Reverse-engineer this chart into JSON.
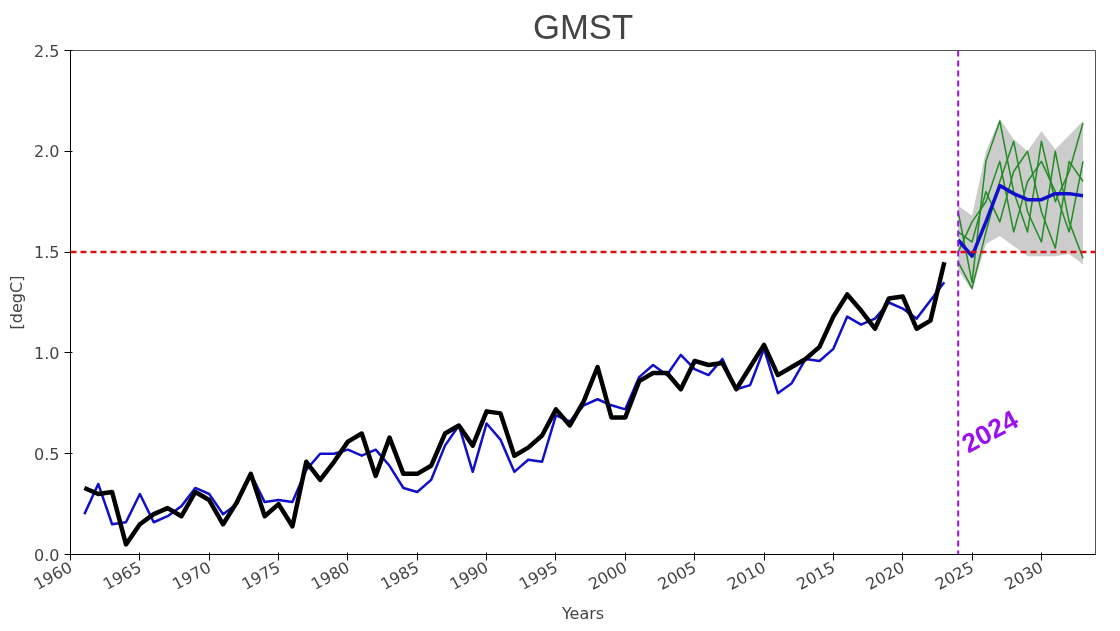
{
  "chart_data": {
    "type": "line",
    "title": "GMST",
    "xlabel": "Years",
    "ylabel": "[degC]",
    "xlim": [
      1960,
      2033.9
    ],
    "ylim": [
      0,
      2.5
    ],
    "xticks": [
      1960,
      1965,
      1970,
      1975,
      1980,
      1985,
      1990,
      1995,
      2000,
      2005,
      2010,
      2015,
      2020,
      2025,
      2030
    ],
    "yticks": [
      {
        "value": 0,
        "label": "0.0"
      },
      {
        "value": 0.5,
        "label": "0.5"
      },
      {
        "value": 1,
        "label": "1.0"
      },
      {
        "value": 1.5,
        "label": "1.5"
      },
      {
        "value": 2,
        "label": "2.0"
      },
      {
        "value": 2.5,
        "label": "2.5"
      }
    ],
    "grid": false,
    "line_style": "solid",
    "marker": "none",
    "series": [
      {
        "color": "#228b22",
        "x": [
          2024,
          2025,
          2026,
          2027,
          2028,
          2029,
          2030,
          2031,
          2032,
          2033
        ],
        "values": [
          1.7,
          1.35,
          1.95,
          2.15,
          1.8,
          1.6,
          2.05,
          1.75,
          1.9,
          2.14
        ]
      },
      {
        "color": "#228b22",
        "x": [
          2024,
          2025,
          2026,
          2027,
          2028,
          2029,
          2030,
          2031,
          2032,
          2033
        ],
        "values": [
          1.45,
          1.32,
          1.6,
          1.85,
          2.05,
          1.7,
          1.55,
          2.0,
          1.65,
          1.47
        ]
      },
      {
        "color": "#228b22",
        "x": [
          2024,
          2025,
          2026,
          2027,
          2028,
          2029,
          2030,
          2031,
          2032,
          2033
        ],
        "values": [
          1.6,
          1.55,
          1.8,
          1.65,
          1.9,
          2.0,
          1.7,
          1.52,
          1.95,
          1.85
        ]
      },
      {
        "color": "#228b22",
        "x": [
          2024,
          2025,
          2026,
          2027,
          2028,
          2029,
          2030,
          2031,
          2032,
          2033
        ],
        "values": [
          1.5,
          1.65,
          1.75,
          1.95,
          1.6,
          1.85,
          1.95,
          1.8,
          1.6,
          1.95
        ]
      },
      {
        "color": "#1010cc",
        "x": [
          2024,
          2025,
          2026,
          2027,
          2028,
          2029,
          2030,
          2031,
          2032,
          2033
        ],
        "values": [
          1.56,
          1.48,
          1.65,
          1.83,
          1.79,
          1.76,
          1.76,
          1.79,
          1.79,
          1.78
        ],
        "lower": [
          1.41,
          1.31,
          1.54,
          1.58,
          1.53,
          1.48,
          1.48,
          1.48,
          1.49,
          1.44
        ],
        "upper": [
          1.73,
          1.68,
          2.0,
          2.16,
          2.06,
          2.0,
          2.1,
          2.01,
          2.08,
          2.15
        ]
      },
      {
        "color": "#1010cc",
        "x": [
          1961,
          1962,
          1963,
          1964,
          1965,
          1966,
          1967,
          1968,
          1969,
          1970,
          1971,
          1972,
          1973,
          1974,
          1975,
          1976,
          1977,
          1978,
          1979,
          1980,
          1981,
          1982,
          1983,
          1984,
          1985,
          1986,
          1987,
          1988,
          1989,
          1990,
          1991,
          1992,
          1993,
          1994,
          1995,
          1996,
          1997,
          1998,
          1999,
          2000,
          2001,
          2002,
          2003,
          2004,
          2005,
          2006,
          2007,
          2008,
          2009,
          2010,
          2011,
          2012,
          2013,
          2014,
          2015,
          2016,
          2017,
          2018,
          2019,
          2020,
          2021,
          2022,
          2023
        ],
        "values": [
          0.2,
          0.35,
          0.15,
          0.16,
          0.3,
          0.16,
          0.19,
          0.24,
          0.33,
          0.3,
          0.2,
          0.25,
          0.4,
          0.26,
          0.27,
          0.26,
          0.42,
          0.5,
          0.5,
          0.52,
          0.49,
          0.52,
          0.44,
          0.33,
          0.31,
          0.37,
          0.54,
          0.64,
          0.41,
          0.65,
          0.57,
          0.41,
          0.47,
          0.46,
          0.69,
          0.66,
          0.74,
          0.77,
          0.74,
          0.72,
          0.88,
          0.94,
          0.89,
          0.99,
          0.92,
          0.89,
          0.97,
          0.82,
          0.84,
          1.02,
          0.8,
          0.85,
          0.97,
          0.96,
          1.02,
          1.18,
          1.14,
          1.17,
          1.25,
          1.22,
          1.17,
          1.26,
          1.35
        ]
      },
      {
        "color": "#000000",
        "x": [
          1961,
          1962,
          1963,
          1964,
          1965,
          1966,
          1967,
          1968,
          1969,
          1970,
          1971,
          1972,
          1973,
          1974,
          1975,
          1976,
          1977,
          1978,
          1979,
          1980,
          1981,
          1982,
          1983,
          1984,
          1985,
          1986,
          1987,
          1988,
          1989,
          1990,
          1991,
          1992,
          1993,
          1994,
          1995,
          1996,
          1997,
          1998,
          1999,
          2000,
          2001,
          2002,
          2003,
          2004,
          2005,
          2006,
          2007,
          2008,
          2009,
          2010,
          2011,
          2012,
          2013,
          2014,
          2015,
          2016,
          2017,
          2018,
          2019,
          2020,
          2021,
          2022,
          2023
        ],
        "values": [
          0.33,
          0.3,
          0.31,
          0.05,
          0.15,
          0.2,
          0.23,
          0.19,
          0.31,
          0.27,
          0.15,
          0.26,
          0.4,
          0.19,
          0.25,
          0.14,
          0.46,
          0.37,
          0.46,
          0.56,
          0.6,
          0.39,
          0.58,
          0.4,
          0.4,
          0.44,
          0.6,
          0.64,
          0.54,
          0.71,
          0.7,
          0.49,
          0.53,
          0.59,
          0.72,
          0.64,
          0.76,
          0.93,
          0.68,
          0.68,
          0.86,
          0.9,
          0.9,
          0.82,
          0.96,
          0.94,
          0.95,
          0.82,
          0.93,
          1.04,
          0.89,
          0.93,
          0.97,
          1.03,
          1.18,
          1.29,
          1.21,
          1.12,
          1.27,
          1.28,
          1.12,
          1.16,
          1.45
        ]
      }
    ],
    "ref_lines": [
      {
        "axis": "y",
        "value": 1.5,
        "color": "#dd1111",
        "line_style": "dashed"
      },
      {
        "axis": "x",
        "value": 2024,
        "label": "2024",
        "color": "#9b10f0",
        "line_style": "dashed"
      }
    ]
  }
}
